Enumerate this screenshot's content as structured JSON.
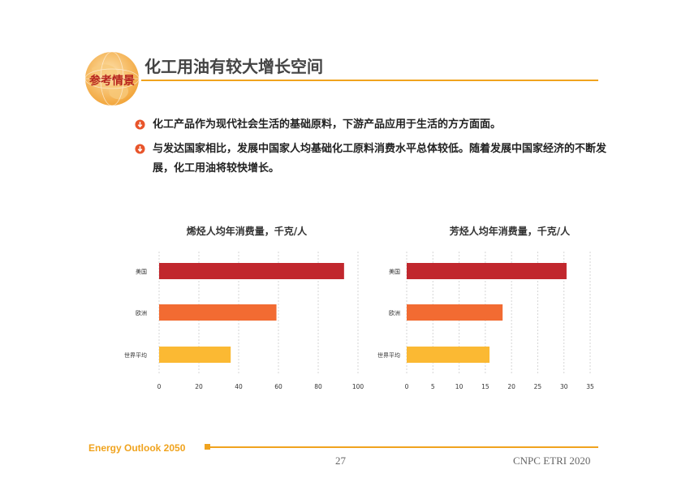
{
  "header": {
    "logo_text": "参考情景",
    "title": "化工用油有较大增长空间"
  },
  "bullets": [
    {
      "icon": "down-arrow-circle-icon",
      "text": "化工产品作为现代社会生活的基础原料，下游产品应用于生活的方方面面。"
    },
    {
      "icon": "down-arrow-circle-icon",
      "text": "与发达国家相比，发展中国家人均基础化工原料消费水平总体较低。随着发展中国家经济的不断发展，化工用油将较快增长。"
    }
  ],
  "chart_data": [
    {
      "type": "bar",
      "orientation": "horizontal",
      "title": "烯烃人均年消费量，千克/人",
      "categories": [
        "美国",
        "欧洲",
        "世界平均"
      ],
      "values": [
        93,
        59,
        36
      ],
      "colors": [
        "#c1272d",
        "#f26b32",
        "#fbb933"
      ],
      "xlim": [
        0,
        100
      ],
      "ticks": [
        0,
        20,
        40,
        60,
        80,
        100
      ],
      "grid": true
    },
    {
      "type": "bar",
      "orientation": "horizontal",
      "title": "芳烃人均年消费量，千克/人",
      "categories": [
        "美国",
        "欧洲",
        "世界平均"
      ],
      "values": [
        30.5,
        18.3,
        15.8
      ],
      "colors": [
        "#c1272d",
        "#f26b32",
        "#fbb933"
      ],
      "xlim": [
        0,
        35
      ],
      "ticks": [
        0,
        5,
        10,
        15,
        20,
        25,
        30,
        35
      ],
      "grid": true
    }
  ],
  "footer": {
    "brand": "Energy Outlook 2050",
    "page_number": "27",
    "org": "CNPC ETRI 2020"
  },
  "colors": {
    "accent": "#f0a31e",
    "bullet": "#e8552b"
  }
}
